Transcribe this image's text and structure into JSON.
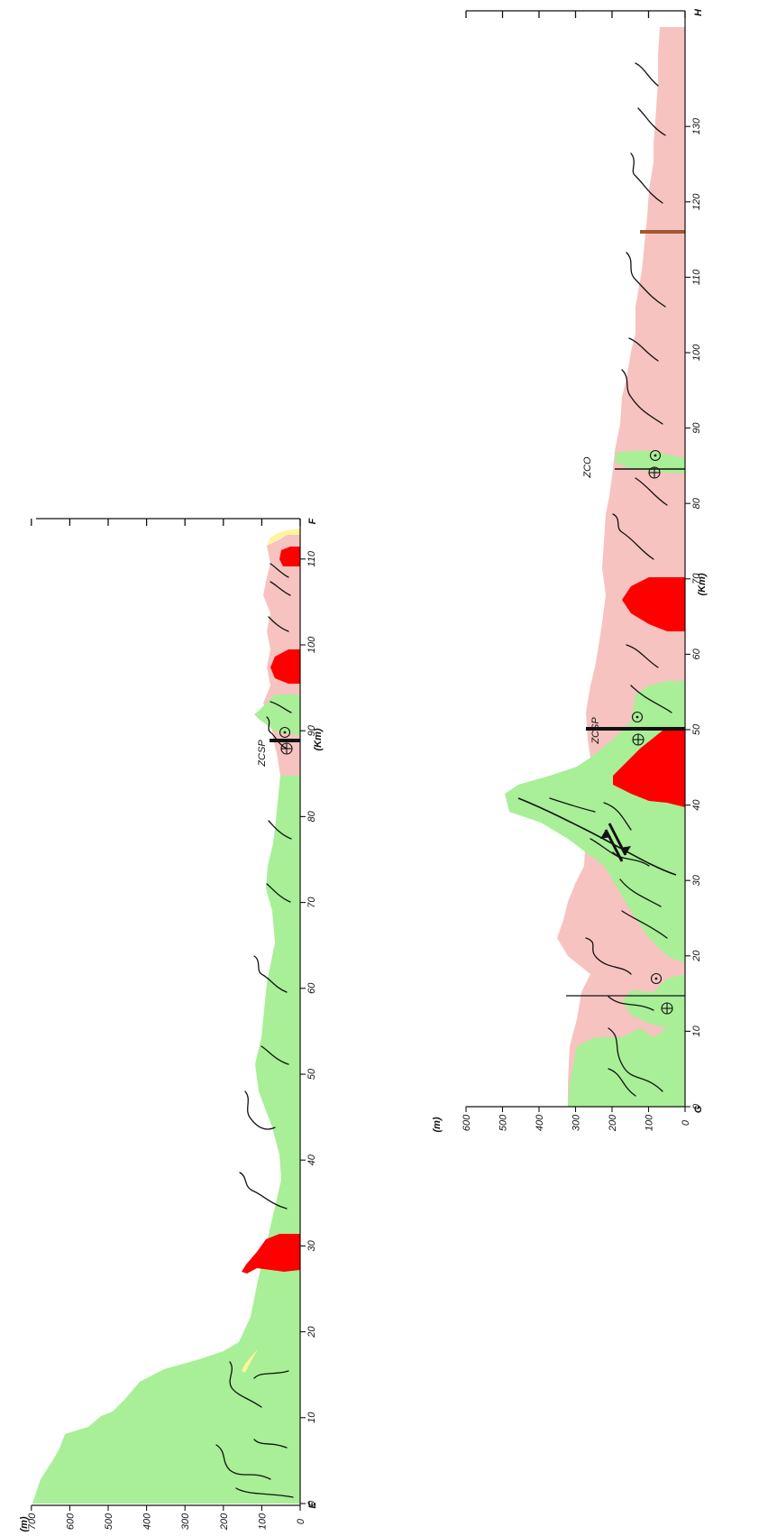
{
  "colors": {
    "green_unit": "#a8ef97",
    "pink_unit": "#f7c3c0",
    "red_unit": "#ff0000",
    "yellow_unit": "#fff49a",
    "fault_brown": "#a5572f",
    "line": "#111111"
  },
  "sections": [
    {
      "id": "EF",
      "start_label": "E",
      "end_label": "F",
      "distance_unit": "(Km)",
      "elevation_unit": "(m)",
      "distance_ticks": [
        "0",
        "10",
        "20",
        "30",
        "40",
        "50",
        "60",
        "70",
        "80",
        "90",
        "100",
        "110"
      ],
      "elevation_ticks": [
        "0",
        "100",
        "200",
        "300",
        "400",
        "500",
        "600",
        "700"
      ],
      "zone_labels": [
        "ZCSP"
      ]
    },
    {
      "id": "GH",
      "start_label": "G",
      "end_label": "H",
      "distance_unit": "(Km)",
      "elevation_unit": "(m)",
      "distance_ticks": [
        "0",
        "10",
        "20",
        "30",
        "40",
        "50",
        "60",
        "70",
        "80",
        "90",
        "100",
        "110",
        "120",
        "130"
      ],
      "elevation_ticks": [
        "0",
        "100",
        "200",
        "300",
        "400",
        "500",
        "600"
      ],
      "zone_labels": [
        "ZCSP",
        "ZCO"
      ]
    }
  ]
}
